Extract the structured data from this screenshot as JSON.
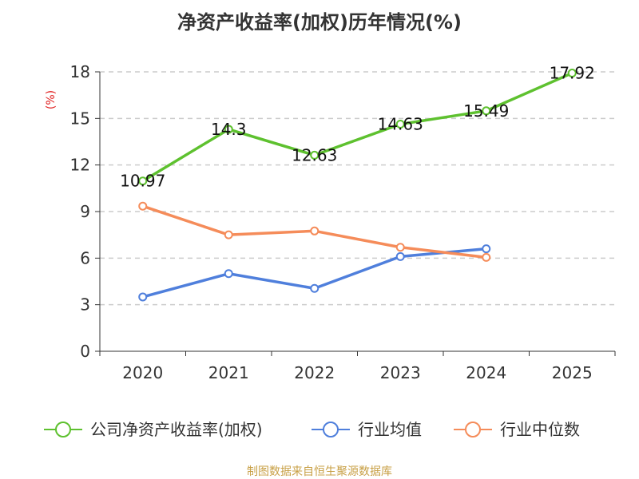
{
  "chart_data": {
    "type": "line",
    "title": "净资产收益率(加权)历年情况(%)",
    "ylabel": "(%)",
    "categories": [
      "2020",
      "2021",
      "2022",
      "2023",
      "2024",
      "2025"
    ],
    "ylim": [
      0,
      18
    ],
    "yticks": [
      "0",
      "3",
      "6",
      "9",
      "12",
      "15",
      "18"
    ],
    "grid": true,
    "series": [
      {
        "name": "公司净资产收益率(加权)",
        "color": "#5ec12f",
        "values": [
          10.97,
          14.3,
          12.63,
          14.63,
          15.49,
          17.92
        ],
        "labels": [
          "10.97",
          "14.3",
          "12.63",
          "14.63",
          "15.49",
          "17.92"
        ]
      },
      {
        "name": "行业均值",
        "color": "#4f7fdc",
        "values": [
          3.5,
          5.0,
          4.05,
          6.1,
          6.6,
          null
        ]
      },
      {
        "name": "行业中位数",
        "color": "#f58c5a",
        "values": [
          9.35,
          7.5,
          7.75,
          6.7,
          6.05,
          null
        ]
      }
    ],
    "legend_position": "bottom"
  },
  "footer": {
    "text": "制图数据来自恒生聚源数据库",
    "color": "#c8a046"
  },
  "colors": {
    "unit_label": "#e02020",
    "axis": "#333333",
    "grid": "#cccccc"
  }
}
